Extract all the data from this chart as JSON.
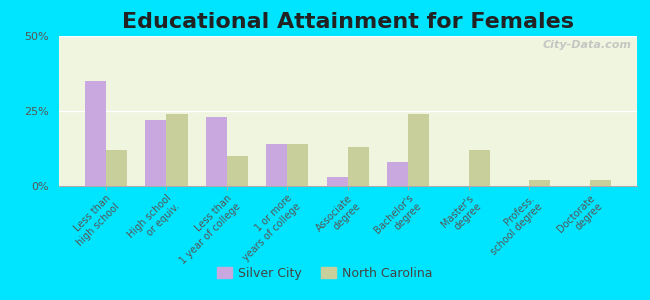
{
  "title": "Educational Attainment for Females",
  "categories": [
    "Less than\nhigh school",
    "High school\nor equiv.",
    "Less than\n1 year of college",
    "1 or more\nyears of college",
    "Associate\ndegree",
    "Bachelor's\ndegree",
    "Master's\ndegree",
    "Profess.\nschool degree",
    "Doctorate\ndegree"
  ],
  "silver_city": [
    35,
    22,
    23,
    14,
    3,
    8,
    0,
    0,
    0
  ],
  "north_carolina": [
    12,
    24,
    10,
    14,
    13,
    24,
    12,
    2,
    2
  ],
  "silver_city_color": "#c9a8e0",
  "north_carolina_color": "#c8cf9a",
  "background_outer": "#00e5ff",
  "background_inner": "#f0f5e0",
  "ylim": [
    0,
    50
  ],
  "yticks": [
    0,
    25,
    50
  ],
  "ytick_labels": [
    "0%",
    "25%",
    "50%"
  ],
  "title_fontsize": 16,
  "bar_width": 0.35,
  "watermark": "City-Data.com"
}
